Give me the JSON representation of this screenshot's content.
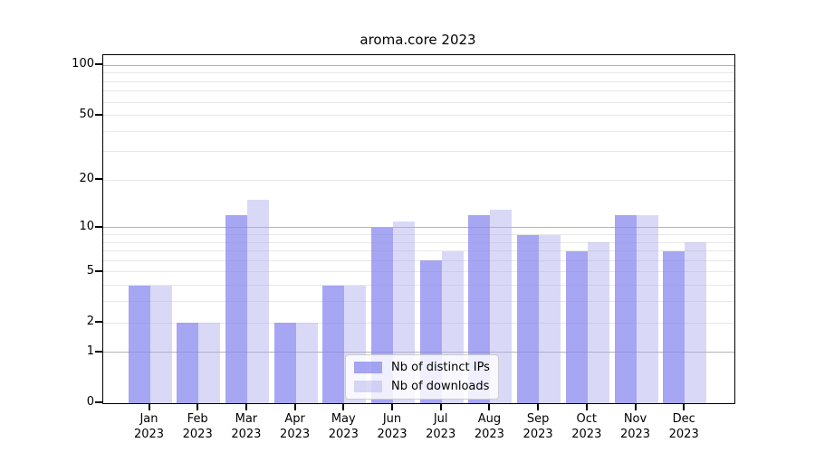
{
  "title": "aroma.core 2023",
  "chart_data": {
    "type": "bar",
    "title": "aroma.core 2023",
    "scale": "log10(1+x)",
    "grid": "on",
    "legend_position": "bottom-center",
    "categories": [
      "Jan 2023",
      "Feb 2023",
      "Mar 2023",
      "Apr 2023",
      "May 2023",
      "Jun 2023",
      "Jul 2023",
      "Aug 2023",
      "Sep 2023",
      "Oct 2023",
      "Nov 2023",
      "Dec 2023"
    ],
    "series": [
      {
        "name": "Nb of distinct IPs",
        "color": "#8888ee",
        "alpha": 0.75,
        "values": [
          4,
          2,
          12,
          2,
          4,
          10,
          6,
          12,
          9,
          7,
          12,
          7
        ]
      },
      {
        "name": "Nb of downloads",
        "color": "#aaaaee",
        "alpha": 0.45,
        "values": [
          4,
          2,
          15,
          2,
          4,
          11,
          7,
          13,
          9,
          8,
          12,
          8
        ]
      }
    ],
    "yticks": [
      0,
      1,
      2,
      5,
      10,
      20,
      50,
      100
    ],
    "grid_major": [
      1,
      10,
      100
    ],
    "grid_minor": [
      2,
      3,
      4,
      5,
      6,
      7,
      8,
      9,
      20,
      30,
      40,
      50,
      60,
      70,
      80,
      90
    ],
    "ylim": [
      0,
      115
    ],
    "xlabel": "",
    "ylabel": ""
  },
  "colors": {
    "grid_major": "#b4b4b4",
    "grid_minor": "#e8e8e8",
    "axis": "#000000",
    "legend_border": "#cccccc"
  }
}
